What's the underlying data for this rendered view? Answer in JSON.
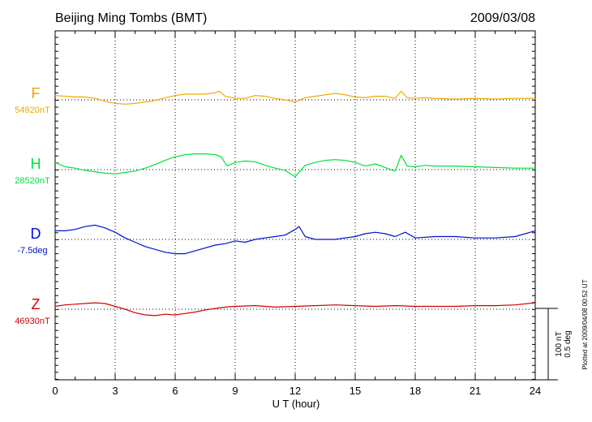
{
  "header": {
    "station": "Beijing Ming Tombs (BMT)",
    "date": "2009/03/08"
  },
  "footer": {
    "plotted": "Plotted at 2009/04/08 00:52 UT"
  },
  "scale": {
    "nt": "100 nT",
    "deg": "0.5 deg"
  },
  "chart_data": {
    "type": "line",
    "xlabel": "U T (hour)",
    "xlim": [
      0,
      24
    ],
    "xticks": [
      "0",
      "3",
      "6",
      "9",
      "12",
      "15",
      "18",
      "21",
      "24"
    ],
    "grid": "dotted vertical every 3 h; dotted baseline per component",
    "series": [
      {
        "name": "F",
        "baseline_label": "54920nT",
        "color": "#f0a800",
        "unit": "nT",
        "x": [
          0,
          0.5,
          1,
          1.5,
          2,
          2.5,
          3,
          3.5,
          4,
          4.5,
          5,
          5.5,
          6,
          6.5,
          7,
          7.5,
          8,
          8.2,
          8.5,
          9,
          9.5,
          10,
          10.5,
          11,
          11.5,
          12,
          12.5,
          13,
          13.5,
          14,
          14.5,
          15,
          15.5,
          16,
          16.5,
          17,
          17.3,
          17.6,
          18,
          18.5,
          19,
          20,
          21,
          22,
          23,
          24
        ],
        "values": [
          6,
          5,
          4,
          4,
          2,
          -2,
          -5,
          -6,
          -5,
          -3,
          -1,
          3,
          6,
          8,
          8,
          8,
          10,
          12,
          5,
          2,
          2,
          6,
          5,
          2,
          0,
          -3,
          3,
          5,
          7,
          9,
          7,
          4,
          3,
          5,
          5,
          2,
          12,
          3,
          2,
          3,
          2,
          1,
          2,
          1,
          2,
          2
        ]
      },
      {
        "name": "H",
        "baseline_label": "28520nT",
        "color": "#00e040",
        "unit": "nT",
        "x": [
          0,
          0.5,
          1,
          1.5,
          2,
          2.5,
          3,
          3.5,
          4,
          4.5,
          5,
          5.5,
          6,
          6.5,
          7,
          7.5,
          8,
          8.3,
          8.6,
          9,
          9.5,
          10,
          10.5,
          11,
          11.5,
          12,
          12.5,
          13,
          13.5,
          14,
          14.5,
          15,
          15.5,
          16,
          16.5,
          17,
          17.3,
          17.6,
          18,
          18.5,
          19,
          20,
          21,
          22,
          23,
          24
        ],
        "values": [
          10,
          4,
          2,
          -1,
          -3,
          -5,
          -6,
          -4,
          -2,
          2,
          7,
          13,
          18,
          21,
          22,
          22,
          21,
          18,
          5,
          10,
          12,
          11,
          6,
          2,
          -1,
          -10,
          6,
          10,
          13,
          14,
          13,
          10,
          5,
          8,
          3,
          -2,
          20,
          5,
          4,
          6,
          5,
          5,
          4,
          3,
          2,
          2
        ]
      },
      {
        "name": "D",
        "baseline_label": "-7.5deg",
        "color": "#0010d0",
        "unit": "deg",
        "x": [
          0,
          0.5,
          1,
          1.5,
          2,
          2.5,
          3,
          3.5,
          4,
          4.5,
          5,
          5.5,
          6,
          6.5,
          7,
          7.5,
          8,
          8.5,
          9,
          9.5,
          10,
          10.5,
          11,
          11.5,
          12,
          12.2,
          12.5,
          13,
          13.5,
          14,
          14.5,
          15,
          15.5,
          16,
          16.5,
          17,
          17.5,
          18,
          19,
          20,
          21,
          22,
          23,
          24
        ],
        "values": [
          0.06,
          0.06,
          0.07,
          0.09,
          0.1,
          0.08,
          0.05,
          0.01,
          -0.02,
          -0.05,
          -0.07,
          -0.09,
          -0.1,
          -0.1,
          -0.08,
          -0.06,
          -0.04,
          -0.03,
          -0.01,
          -0.02,
          0,
          0.01,
          0.02,
          0.03,
          0.07,
          0.09,
          0.02,
          0,
          0,
          0,
          0.01,
          0.02,
          0.04,
          0.05,
          0.04,
          0.02,
          0.05,
          0.01,
          0.02,
          0.02,
          0.01,
          0.01,
          0.02,
          0.06
        ]
      },
      {
        "name": "Z",
        "baseline_label": "46930nT",
        "color": "#d00000",
        "unit": "nT",
        "x": [
          0,
          0.5,
          1,
          1.5,
          2,
          2.5,
          3,
          3.5,
          4,
          4.5,
          5,
          5.5,
          6,
          6.5,
          7,
          7.5,
          8,
          8.5,
          9,
          10,
          11,
          12,
          13,
          14,
          15,
          16,
          17,
          18,
          19,
          20,
          21,
          22,
          23,
          24
        ],
        "values": [
          4,
          6,
          7,
          8,
          9,
          8,
          4,
          0,
          -5,
          -8,
          -9,
          -7,
          -8,
          -6,
          -4,
          -1,
          1,
          3,
          4,
          5,
          3,
          4,
          5,
          6,
          5,
          4,
          5,
          4,
          4,
          4,
          5,
          5,
          6,
          9
        ]
      }
    ]
  }
}
